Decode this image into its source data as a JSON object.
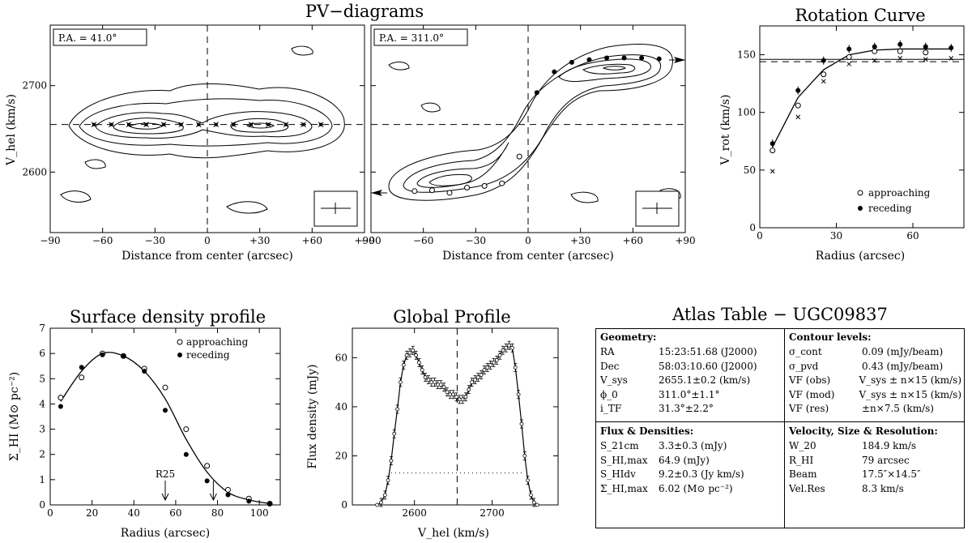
{
  "pv": {
    "title": "PV−diagrams",
    "ylabel": "V_hel (km/s)",
    "xlabel": "Distance from center (arcsec)",
    "xticks": [
      "−90",
      "−60",
      "−30",
      "0",
      "+30",
      "+60",
      "+90"
    ],
    "yticks": [
      "2600",
      "2700"
    ],
    "panels": [
      {
        "pa_label": "P.A. = 41.0°"
      },
      {
        "pa_label": "P.A. = 311.0°"
      }
    ]
  },
  "chart_data": [
    {
      "id": "pv1",
      "type": "scatter",
      "title": "PV−diagrams",
      "annotation": "P.A. = 41.0°",
      "xlabel": "Distance from center (arcsec)",
      "ylabel": "V_hel (km/s)",
      "xlim": [
        -90,
        90
      ],
      "ylim": [
        2530,
        2770
      ],
      "vsys": 2655,
      "xticks": [
        -90,
        -60,
        -30,
        0,
        30,
        60,
        90
      ],
      "yticks": [
        2600,
        2700
      ],
      "points": [
        [
          -65,
          2655
        ],
        [
          -55,
          2655
        ],
        [
          -45,
          2655
        ],
        [
          -35,
          2655
        ],
        [
          -25,
          2655
        ],
        [
          -15,
          2655
        ],
        [
          -5,
          2655
        ],
        [
          5,
          2655
        ],
        [
          15,
          2655
        ],
        [
          25,
          2655
        ],
        [
          35,
          2655
        ],
        [
          45,
          2655
        ],
        [
          55,
          2655
        ],
        [
          65,
          2655
        ]
      ]
    },
    {
      "id": "pv2",
      "type": "scatter",
      "title": "PV−diagrams",
      "annotation": "P.A. = 311.0°",
      "xlabel": "Distance from center (arcsec)",
      "xlim": [
        -90,
        90
      ],
      "ylim": [
        2530,
        2770
      ],
      "vsys": 2655,
      "xticks": [
        -90,
        -60,
        -30,
        0,
        30,
        60,
        90
      ],
      "approaching": [
        [
          -65,
          2578
        ],
        [
          -55,
          2579
        ],
        [
          -45,
          2576
        ],
        [
          -35,
          2582
        ],
        [
          -25,
          2584
        ],
        [
          -15,
          2587
        ],
        [
          -5,
          2618
        ]
      ],
      "receding": [
        [
          5,
          2692
        ],
        [
          15,
          2716
        ],
        [
          25,
          2727
        ],
        [
          35,
          2730
        ],
        [
          45,
          2732
        ],
        [
          55,
          2732
        ],
        [
          65,
          2732
        ],
        [
          75,
          2731
        ]
      ]
    },
    {
      "id": "rotcurve",
      "type": "scatter",
      "title": "Rotation Curve",
      "xlabel": "Radius (arcsec)",
      "ylabel": "V_rot (km/s)",
      "xlim": [
        0,
        80
      ],
      "ylim": [
        0,
        175
      ],
      "xticks": [
        0,
        30,
        60
      ],
      "yticks": [
        0,
        50,
        100,
        150
      ],
      "curve": [
        [
          5,
          70
        ],
        [
          15,
          113
        ],
        [
          25,
          137
        ],
        [
          35,
          150
        ],
        [
          45,
          154
        ],
        [
          55,
          155
        ],
        [
          65,
          155
        ],
        [
          75,
          155
        ]
      ],
      "approaching": [
        [
          5,
          67
        ],
        [
          15,
          106
        ],
        [
          25,
          133
        ],
        [
          35,
          148
        ],
        [
          45,
          153
        ],
        [
          55,
          153
        ],
        [
          65,
          152
        ]
      ],
      "receding": [
        [
          5,
          73
        ],
        [
          15,
          119
        ],
        [
          25,
          145
        ],
        [
          35,
          155
        ],
        [
          45,
          157
        ],
        [
          55,
          159
        ],
        [
          65,
          157
        ],
        [
          75,
          156
        ]
      ],
      "crosses": [
        [
          5,
          49
        ],
        [
          15,
          96
        ],
        [
          25,
          127
        ],
        [
          35,
          142
        ],
        [
          45,
          145
        ],
        [
          55,
          147
        ],
        [
          65,
          146
        ],
        [
          75,
          147
        ]
      ],
      "vmax_line": 146,
      "vflat_dashed": 144,
      "legend": [
        "approaching",
        "receding"
      ]
    },
    {
      "id": "surfdens",
      "type": "scatter",
      "title": "Surface density profile",
      "xlabel": "Radius (arcsec)",
      "ylabel": "Σ_HI (M⊙ pc⁻²)",
      "xlim": [
        0,
        110
      ],
      "ylim": [
        0,
        7
      ],
      "xticks": [
        0,
        20,
        40,
        60,
        80,
        100
      ],
      "yticks": [
        0,
        1,
        2,
        3,
        4,
        5,
        6,
        7
      ],
      "curve": [
        [
          5,
          4.1
        ],
        [
          15,
          5.3
        ],
        [
          25,
          6.0
        ],
        [
          35,
          5.9
        ],
        [
          45,
          5.3
        ],
        [
          55,
          4.2
        ],
        [
          65,
          2.6
        ],
        [
          75,
          1.3
        ],
        [
          85,
          0.5
        ],
        [
          95,
          0.2
        ],
        [
          105,
          0.05
        ]
      ],
      "approaching": [
        [
          5,
          4.25
        ],
        [
          15,
          5.05
        ],
        [
          25,
          6.0
        ],
        [
          35,
          5.9
        ],
        [
          45,
          5.4
        ],
        [
          55,
          4.65
        ],
        [
          65,
          3.0
        ],
        [
          75,
          1.55
        ],
        [
          85,
          0.6
        ],
        [
          95,
          0.25
        ],
        [
          105,
          0.05
        ]
      ],
      "receding": [
        [
          5,
          3.9
        ],
        [
          15,
          5.45
        ],
        [
          25,
          5.95
        ],
        [
          35,
          5.9
        ],
        [
          45,
          5.3
        ],
        [
          55,
          3.75
        ],
        [
          65,
          2.0
        ],
        [
          75,
          0.95
        ],
        [
          85,
          0.4
        ],
        [
          95,
          0.15
        ],
        [
          105,
          0.05
        ]
      ],
      "markers": [
        {
          "label": "R25",
          "x": 55
        },
        {
          "label": "",
          "x": 78
        }
      ],
      "legend": [
        "approaching",
        "receding"
      ]
    },
    {
      "id": "globalprof",
      "type": "line",
      "title": "Global Profile",
      "xlabel": "V_hel (km/s)",
      "ylabel": "Flux density (mJy)",
      "xlim": [
        2520,
        2785
      ],
      "ylim": [
        0,
        72
      ],
      "xticks": [
        2600,
        2700
      ],
      "yticks": [
        0,
        20,
        40,
        60
      ],
      "vsys": 2655,
      "w20_level": 13,
      "points": [
        [
          2552,
          0
        ],
        [
          2557,
          1
        ],
        [
          2562,
          4
        ],
        [
          2566,
          10
        ],
        [
          2570,
          18
        ],
        [
          2574,
          29
        ],
        [
          2578,
          39
        ],
        [
          2582,
          50
        ],
        [
          2586,
          57
        ],
        [
          2590,
          61
        ],
        [
          2594,
          62
        ],
        [
          2598,
          63
        ],
        [
          2602,
          61
        ],
        [
          2606,
          58
        ],
        [
          2610,
          55
        ],
        [
          2614,
          52
        ],
        [
          2618,
          51
        ],
        [
          2622,
          50
        ],
        [
          2626,
          50
        ],
        [
          2630,
          49
        ],
        [
          2634,
          49
        ],
        [
          2638,
          48
        ],
        [
          2642,
          46
        ],
        [
          2646,
          45
        ],
        [
          2650,
          45
        ],
        [
          2654,
          44
        ],
        [
          2658,
          43
        ],
        [
          2662,
          43
        ],
        [
          2666,
          44
        ],
        [
          2670,
          47
        ],
        [
          2674,
          50
        ],
        [
          2678,
          51
        ],
        [
          2682,
          52
        ],
        [
          2686,
          53
        ],
        [
          2690,
          55
        ],
        [
          2694,
          56
        ],
        [
          2698,
          57
        ],
        [
          2702,
          58
        ],
        [
          2706,
          59
        ],
        [
          2710,
          61
        ],
        [
          2714,
          63
        ],
        [
          2718,
          64
        ],
        [
          2722,
          65
        ],
        [
          2726,
          64
        ],
        [
          2730,
          56
        ],
        [
          2734,
          45
        ],
        [
          2738,
          33
        ],
        [
          2742,
          20
        ],
        [
          2746,
          10
        ],
        [
          2750,
          4
        ],
        [
          2754,
          1
        ],
        [
          2758,
          0
        ]
      ]
    }
  ],
  "rot": {
    "title": "Rotation Curve",
    "xlabel": "Radius (arcsec)",
    "ylabel": "V_rot (km/s)",
    "legend_approaching": "approaching",
    "legend_receding": "receding"
  },
  "sd": {
    "title": "Surface density profile",
    "xlabel": "Radius (arcsec)",
    "ylabel": "Σ_HI (M⊙ pc⁻²)",
    "legend_approaching": "approaching",
    "legend_receding": "receding",
    "r25": "R25"
  },
  "gp": {
    "title": "Global Profile",
    "xlabel": "V_hel (km/s)",
    "ylabel": "Flux density (mJy)"
  },
  "atlas": {
    "title": "Atlas Table − UGC09837",
    "geometry": {
      "header": "Geometry:",
      "rows": [
        {
          "k": "RA",
          "v": "15:23:51.68 (J2000)"
        },
        {
          "k": "Dec",
          "v": "58:03:10.60 (J2000)"
        },
        {
          "k": "V_sys",
          "v": "2655.1±0.2 (km/s)"
        },
        {
          "k": "ϕ_0",
          "v": "311.0°±1.1°"
        },
        {
          "k": "i_TF",
          "v": "31.3°±2.2°"
        }
      ]
    },
    "contours": {
      "header": "Contour levels:",
      "rows": [
        {
          "k": "σ_cont",
          "v": "0.09 (mJy/beam)"
        },
        {
          "k": "σ_pvd",
          "v": "0.43 (mJy/beam)"
        },
        {
          "k": "VF (obs)",
          "v": "V_sys ± n×15 (km/s)"
        },
        {
          "k": "VF (mod)",
          "v": "V_sys ± n×15 (km/s)"
        },
        {
          "k": "VF (res)",
          "v": "±n×7.5 (km/s)"
        }
      ]
    },
    "flux": {
      "header": "Flux & Densities:",
      "rows": [
        {
          "k": "S_21cm",
          "v": "3.3±0.3 (mJy)"
        },
        {
          "k": "S_HI,max",
          "v": "64.9 (mJy)"
        },
        {
          "k": "S_HIdv",
          "v": "9.2±0.3 (Jy km/s)"
        },
        {
          "k": "Σ_HI,max",
          "v": "6.02 (M⊙ pc⁻²)"
        }
      ]
    },
    "velocity": {
      "header": "Velocity, Size & Resolution:",
      "rows": [
        {
          "k": "W_20",
          "v": "184.9 km/s"
        },
        {
          "k": "R_HI",
          "v": "79 arcsec"
        },
        {
          "k": "Beam",
          "v": "17.5″×14.5″"
        },
        {
          "k": "Vel.Res",
          "v": "8.3 km/s"
        }
      ]
    }
  }
}
